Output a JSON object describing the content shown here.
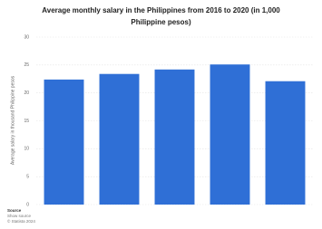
{
  "chart_data": {
    "type": "bar",
    "title": "Average monthly salary in the Philippines from 2016 to 2020 (in 1,000 Philippine pesos)",
    "y_label": "Average salary in thousand Philippine pesos",
    "values": [
      22.4,
      23.4,
      24.2,
      25.1,
      22.1
    ],
    "color": "#2f6fd6",
    "ylim": [
      0,
      30
    ],
    "yticks": [
      0,
      5,
      10,
      15,
      20,
      25,
      30
    ],
    "grid": true,
    "source": {
      "heading": "Source",
      "line1": "Show source",
      "line2": "© Statista 2024"
    }
  }
}
